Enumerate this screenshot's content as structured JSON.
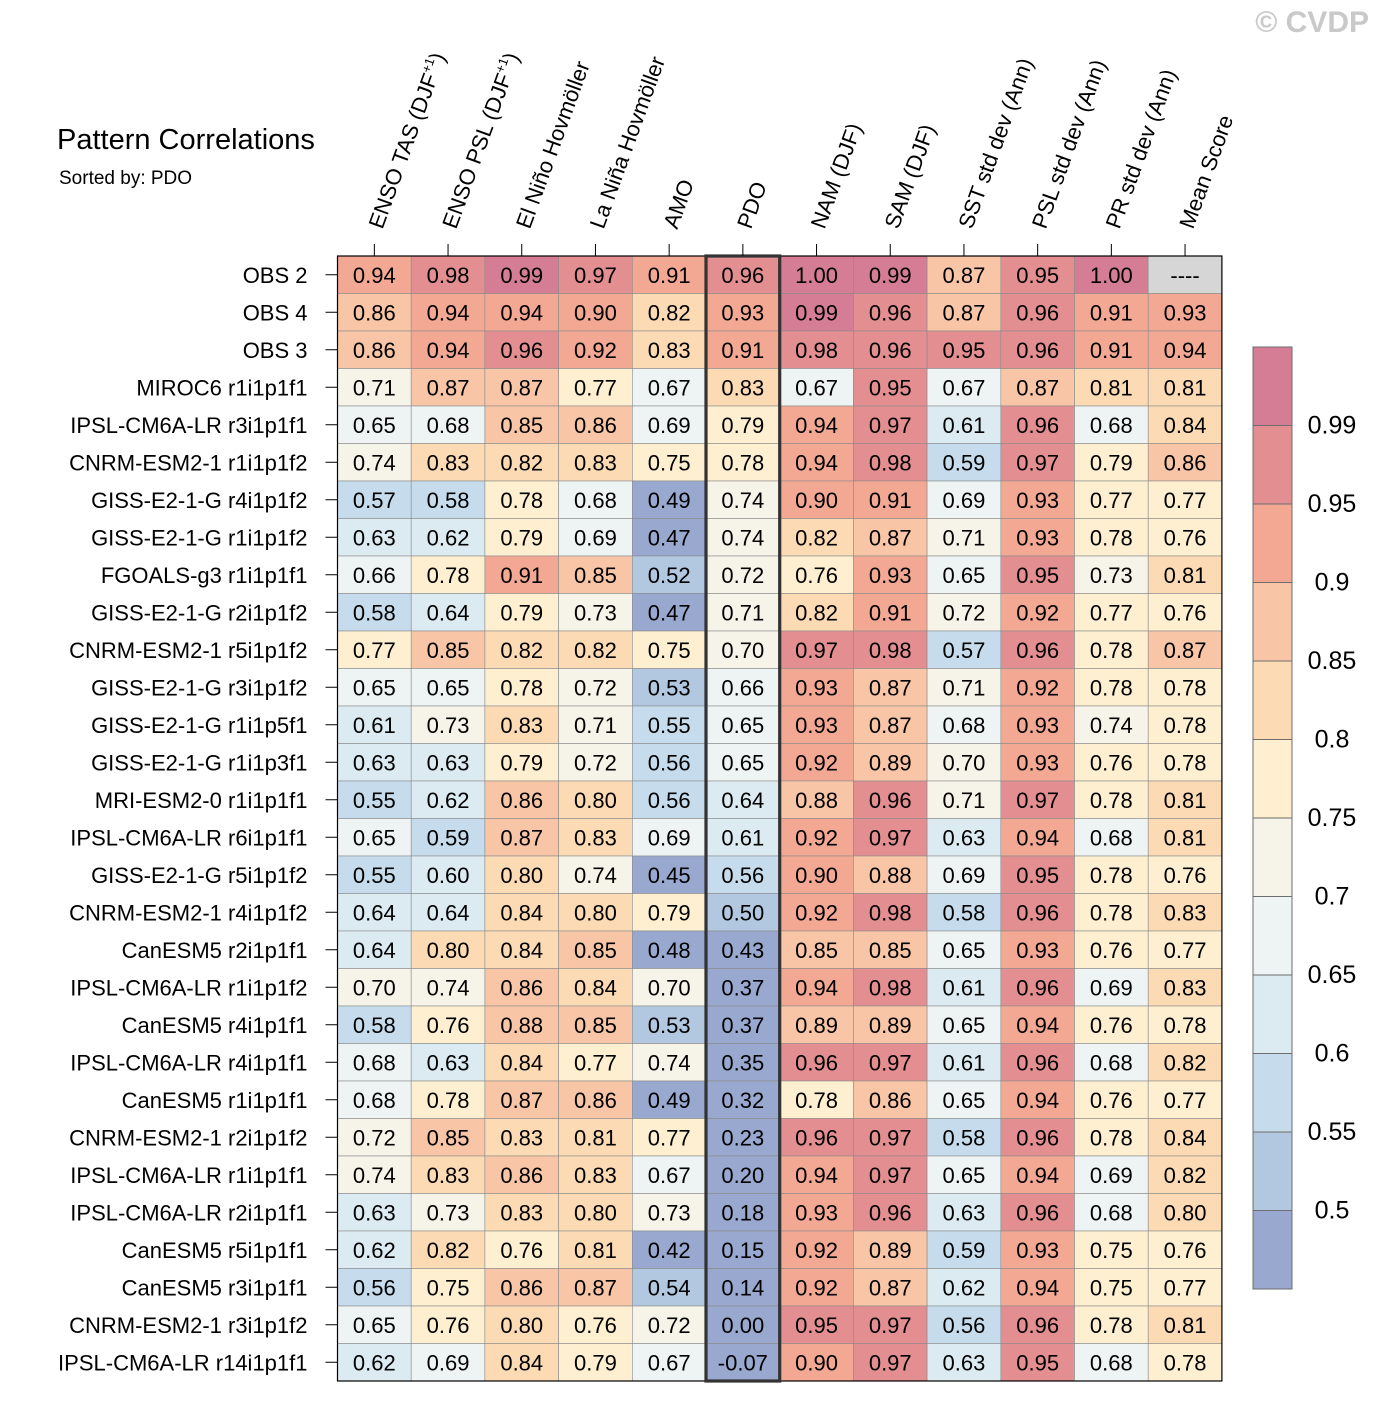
{
  "watermark": "© CVDP",
  "chart_data": {
    "type": "heatmap",
    "title": "Pattern Correlations",
    "subtitle": "Sorted by: PDO",
    "highlight_column": "PDO",
    "columns": [
      {
        "label": "ENSO TAS (DJF",
        "sup": "+1",
        "close": ")"
      },
      {
        "label": "ENSO PSL (DJF",
        "sup": "+1",
        "close": ")"
      },
      {
        "label": "El Niño Hovmöller"
      },
      {
        "label": "La Niña Hovmöller"
      },
      {
        "label": "AMO"
      },
      {
        "label": "PDO"
      },
      {
        "label": "NAM (DJF)"
      },
      {
        "label": "SAM (DJF)"
      },
      {
        "label": "SST std dev (Ann)"
      },
      {
        "label": "PSL std dev (Ann)"
      },
      {
        "label": "PR std dev (Ann)"
      },
      {
        "label": "Mean Score"
      }
    ],
    "rows": [
      {
        "label": "OBS 2",
        "values": [
          "0.94",
          "0.98",
          "0.99",
          "0.97",
          "0.91",
          "0.96",
          "1.00",
          "0.99",
          "0.87",
          "0.95",
          "1.00",
          "----"
        ]
      },
      {
        "label": "OBS 4",
        "values": [
          "0.86",
          "0.94",
          "0.94",
          "0.90",
          "0.82",
          "0.93",
          "0.99",
          "0.96",
          "0.87",
          "0.96",
          "0.91",
          "0.93"
        ]
      },
      {
        "label": "OBS 3",
        "values": [
          "0.86",
          "0.94",
          "0.96",
          "0.92",
          "0.83",
          "0.91",
          "0.98",
          "0.96",
          "0.95",
          "0.96",
          "0.91",
          "0.94"
        ]
      },
      {
        "label": "MIROC6 r1i1p1f1",
        "values": [
          "0.71",
          "0.87",
          "0.87",
          "0.77",
          "0.67",
          "0.83",
          "0.67",
          "0.95",
          "0.67",
          "0.87",
          "0.81",
          "0.81"
        ]
      },
      {
        "label": "IPSL-CM6A-LR r3i1p1f1",
        "values": [
          "0.65",
          "0.68",
          "0.85",
          "0.86",
          "0.69",
          "0.79",
          "0.94",
          "0.97",
          "0.61",
          "0.96",
          "0.68",
          "0.84"
        ]
      },
      {
        "label": "CNRM-ESM2-1 r1i1p1f2",
        "values": [
          "0.74",
          "0.83",
          "0.82",
          "0.83",
          "0.75",
          "0.78",
          "0.94",
          "0.98",
          "0.59",
          "0.97",
          "0.79",
          "0.86"
        ]
      },
      {
        "label": "GISS-E2-1-G r4i1p1f2",
        "values": [
          "0.57",
          "0.58",
          "0.78",
          "0.68",
          "0.49",
          "0.74",
          "0.90",
          "0.91",
          "0.69",
          "0.93",
          "0.77",
          "0.77"
        ]
      },
      {
        "label": "GISS-E2-1-G r1i1p1f2",
        "values": [
          "0.63",
          "0.62",
          "0.79",
          "0.69",
          "0.47",
          "0.74",
          "0.82",
          "0.87",
          "0.71",
          "0.93",
          "0.78",
          "0.76"
        ]
      },
      {
        "label": "FGOALS-g3 r1i1p1f1",
        "values": [
          "0.66",
          "0.78",
          "0.91",
          "0.85",
          "0.52",
          "0.72",
          "0.76",
          "0.93",
          "0.65",
          "0.95",
          "0.73",
          "0.81"
        ]
      },
      {
        "label": "GISS-E2-1-G r2i1p1f2",
        "values": [
          "0.58",
          "0.64",
          "0.79",
          "0.73",
          "0.47",
          "0.71",
          "0.82",
          "0.91",
          "0.72",
          "0.92",
          "0.77",
          "0.76"
        ]
      },
      {
        "label": "CNRM-ESM2-1 r5i1p1f2",
        "values": [
          "0.77",
          "0.85",
          "0.82",
          "0.82",
          "0.75",
          "0.70",
          "0.97",
          "0.98",
          "0.57",
          "0.96",
          "0.78",
          "0.87"
        ]
      },
      {
        "label": "GISS-E2-1-G r3i1p1f2",
        "values": [
          "0.65",
          "0.65",
          "0.78",
          "0.72",
          "0.53",
          "0.66",
          "0.93",
          "0.87",
          "0.71",
          "0.92",
          "0.78",
          "0.78"
        ]
      },
      {
        "label": "GISS-E2-1-G r1i1p5f1",
        "values": [
          "0.61",
          "0.73",
          "0.83",
          "0.71",
          "0.55",
          "0.65",
          "0.93",
          "0.87",
          "0.68",
          "0.93",
          "0.74",
          "0.78"
        ]
      },
      {
        "label": "GISS-E2-1-G r1i1p3f1",
        "values": [
          "0.63",
          "0.63",
          "0.79",
          "0.72",
          "0.56",
          "0.65",
          "0.92",
          "0.89",
          "0.70",
          "0.93",
          "0.76",
          "0.78"
        ]
      },
      {
        "label": "MRI-ESM2-0 r1i1p1f1",
        "values": [
          "0.55",
          "0.62",
          "0.86",
          "0.80",
          "0.56",
          "0.64",
          "0.88",
          "0.96",
          "0.71",
          "0.97",
          "0.78",
          "0.81"
        ]
      },
      {
        "label": "IPSL-CM6A-LR r6i1p1f1",
        "values": [
          "0.65",
          "0.59",
          "0.87",
          "0.83",
          "0.69",
          "0.61",
          "0.92",
          "0.97",
          "0.63",
          "0.94",
          "0.68",
          "0.81"
        ]
      },
      {
        "label": "GISS-E2-1-G r5i1p1f2",
        "values": [
          "0.55",
          "0.60",
          "0.80",
          "0.74",
          "0.45",
          "0.56",
          "0.90",
          "0.88",
          "0.69",
          "0.95",
          "0.78",
          "0.76"
        ]
      },
      {
        "label": "CNRM-ESM2-1 r4i1p1f2",
        "values": [
          "0.64",
          "0.64",
          "0.84",
          "0.80",
          "0.79",
          "0.50",
          "0.92",
          "0.98",
          "0.58",
          "0.96",
          "0.78",
          "0.83"
        ]
      },
      {
        "label": "CanESM5 r2i1p1f1",
        "values": [
          "0.64",
          "0.80",
          "0.84",
          "0.85",
          "0.48",
          "0.43",
          "0.85",
          "0.85",
          "0.65",
          "0.93",
          "0.76",
          "0.77"
        ]
      },
      {
        "label": "IPSL-CM6A-LR r1i1p1f2",
        "values": [
          "0.70",
          "0.74",
          "0.86",
          "0.84",
          "0.70",
          "0.37",
          "0.94",
          "0.98",
          "0.61",
          "0.96",
          "0.69",
          "0.83"
        ]
      },
      {
        "label": "CanESM5 r4i1p1f1",
        "values": [
          "0.58",
          "0.76",
          "0.88",
          "0.85",
          "0.53",
          "0.37",
          "0.89",
          "0.89",
          "0.65",
          "0.94",
          "0.76",
          "0.78"
        ]
      },
      {
        "label": "IPSL-CM6A-LR r4i1p1f1",
        "values": [
          "0.68",
          "0.63",
          "0.84",
          "0.77",
          "0.74",
          "0.35",
          "0.96",
          "0.97",
          "0.61",
          "0.96",
          "0.68",
          "0.82"
        ]
      },
      {
        "label": "CanESM5 r1i1p1f1",
        "values": [
          "0.68",
          "0.78",
          "0.87",
          "0.86",
          "0.49",
          "0.32",
          "0.78",
          "0.86",
          "0.65",
          "0.94",
          "0.76",
          "0.77"
        ]
      },
      {
        "label": "CNRM-ESM2-1 r2i1p1f2",
        "values": [
          "0.72",
          "0.85",
          "0.83",
          "0.81",
          "0.77",
          "0.23",
          "0.96",
          "0.97",
          "0.58",
          "0.96",
          "0.78",
          "0.84"
        ]
      },
      {
        "label": "IPSL-CM6A-LR r1i1p1f1",
        "values": [
          "0.74",
          "0.83",
          "0.86",
          "0.83",
          "0.67",
          "0.20",
          "0.94",
          "0.97",
          "0.65",
          "0.94",
          "0.69",
          "0.82"
        ]
      },
      {
        "label": "IPSL-CM6A-LR r2i1p1f1",
        "values": [
          "0.63",
          "0.73",
          "0.83",
          "0.80",
          "0.73",
          "0.18",
          "0.93",
          "0.96",
          "0.63",
          "0.96",
          "0.68",
          "0.80"
        ]
      },
      {
        "label": "CanESM5 r5i1p1f1",
        "values": [
          "0.62",
          "0.82",
          "0.76",
          "0.81",
          "0.42",
          "0.15",
          "0.92",
          "0.89",
          "0.59",
          "0.93",
          "0.75",
          "0.76"
        ]
      },
      {
        "label": "CanESM5 r3i1p1f1",
        "values": [
          "0.56",
          "0.75",
          "0.86",
          "0.87",
          "0.54",
          "0.14",
          "0.92",
          "0.87",
          "0.62",
          "0.94",
          "0.75",
          "0.77"
        ]
      },
      {
        "label": "CNRM-ESM2-1 r3i1p1f2",
        "values": [
          "0.65",
          "0.76",
          "0.80",
          "0.76",
          "0.72",
          "0.00",
          "0.95",
          "0.97",
          "0.56",
          "0.96",
          "0.78",
          "0.81"
        ]
      },
      {
        "label": "IPSL-CM6A-LR r14i1p1f1",
        "values": [
          "0.62",
          "0.69",
          "0.84",
          "0.79",
          "0.67",
          "-0.07",
          "0.90",
          "0.97",
          "0.63",
          "0.95",
          "0.68",
          "0.78"
        ]
      }
    ],
    "colorbar": {
      "bounds": [
        0.5,
        0.55,
        0.6,
        0.65,
        0.7,
        0.75,
        0.8,
        0.85,
        0.9,
        0.95,
        0.99
      ],
      "tick_labels": [
        "0.5",
        "0.55",
        "0.6",
        "0.65",
        "0.7",
        "0.75",
        "0.8",
        "0.85",
        "0.9",
        "0.95",
        "0.99"
      ],
      "colors": [
        "#98a8cf",
        "#b2c8e0",
        "#c6dced",
        "#dcebf2",
        "#eef4f3",
        "#f6f4e8",
        "#fdefcf",
        "#fcdbb4",
        "#f8c5a6",
        "#f3a894",
        "#e38e91",
        "#d47d94"
      ],
      "missing_color": "#d6d6d6"
    }
  }
}
